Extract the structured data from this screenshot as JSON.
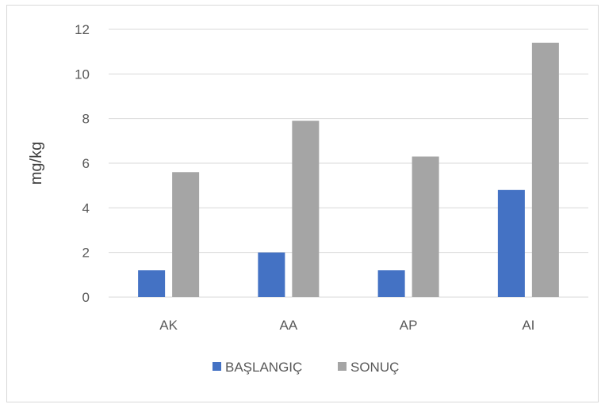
{
  "chart_data": {
    "type": "bar",
    "title": "",
    "xlabel": "",
    "ylabel": "mg/kg",
    "ylim": [
      0,
      12
    ],
    "yticks": [
      0,
      2,
      4,
      6,
      8,
      10,
      12
    ],
    "grid": true,
    "legend_position": "bottom",
    "categories": [
      "AK",
      "AA",
      "AP",
      "AI"
    ],
    "series": [
      {
        "name": "BAŞLANGIÇ",
        "color": "#4472c4",
        "values": [
          1.2,
          2.0,
          1.2,
          4.8
        ]
      },
      {
        "name": "SONUÇ",
        "color": "#a5a5a5",
        "values": [
          5.6,
          7.9,
          6.3,
          11.4
        ]
      }
    ]
  }
}
